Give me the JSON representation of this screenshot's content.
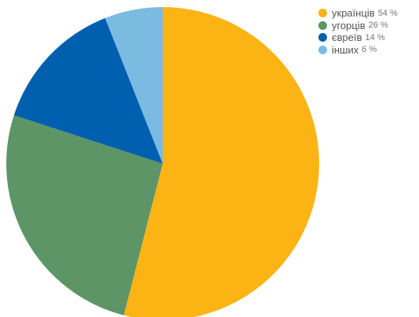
{
  "chart_data": {
    "type": "pie",
    "title": "",
    "start_angle_deg": 0,
    "direction": "clockwise",
    "legend_position": "top-right",
    "slices": [
      {
        "label": "українців",
        "value": 54,
        "value_label": "54 %",
        "color": "#FCB415"
      },
      {
        "label": "угорців",
        "value": 26,
        "value_label": "26 %",
        "color": "#5E9566"
      },
      {
        "label": "євреїв",
        "value": 14,
        "value_label": "14 %",
        "color": "#015FAF"
      },
      {
        "label": "інших",
        "value": 6,
        "value_label": "6 %",
        "color": "#7BBBE2"
      }
    ]
  }
}
